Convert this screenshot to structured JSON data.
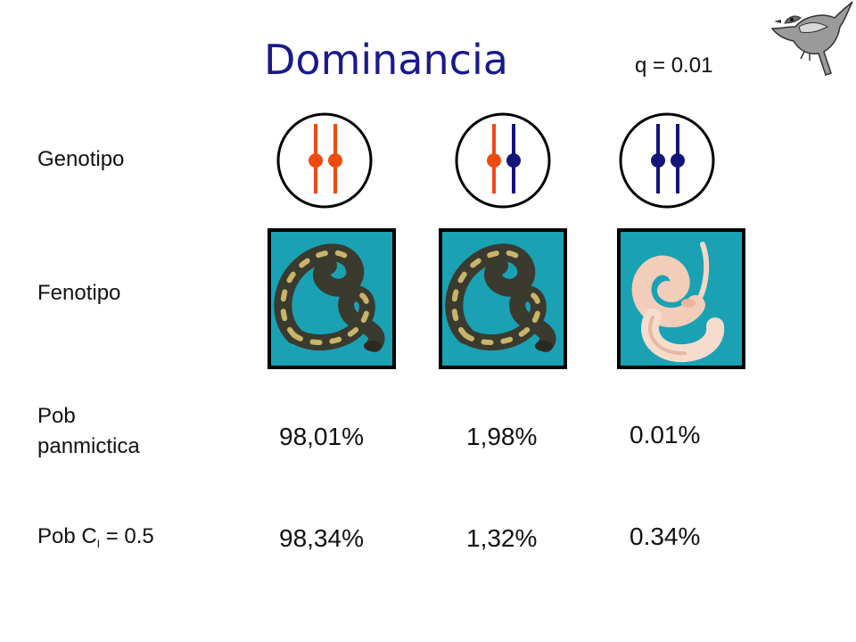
{
  "header": {
    "title": "Dominancia",
    "q_label": "q = 0.01"
  },
  "rows": {
    "genotype_label": "Genotipo",
    "phenotype_label": "Fenotipo",
    "panmictic_label_line1": "Pob",
    "panmictic_label_line2": "panmictica",
    "ci_label_prefix": "Pob C",
    "ci_label_sub": "I",
    "ci_label_suffix": " = 0.5"
  },
  "colors": {
    "allele_dominant": "#ee4b10",
    "allele_recessive": "#14147a",
    "circle_outline": "#000000",
    "photo_background": "#1aa1b4",
    "title": "#1a1a8c"
  },
  "genotypes": [
    {
      "allele_left": "dominant",
      "allele_right": "dominant"
    },
    {
      "allele_left": "dominant",
      "allele_right": "recessive"
    },
    {
      "allele_left": "recessive",
      "allele_right": "recessive"
    }
  ],
  "phenotypes": [
    {
      "icon": "normal-ball-python-icon"
    },
    {
      "icon": "normal-ball-python-icon"
    },
    {
      "icon": "albino-ball-python-icon"
    }
  ],
  "panmictic": [
    "98,01%",
    "1,98%",
    "0.01%"
  ],
  "ci": [
    "98,34%",
    "1,32%",
    "0.34%"
  ],
  "decoration": {
    "icon": "bird-icon"
  }
}
